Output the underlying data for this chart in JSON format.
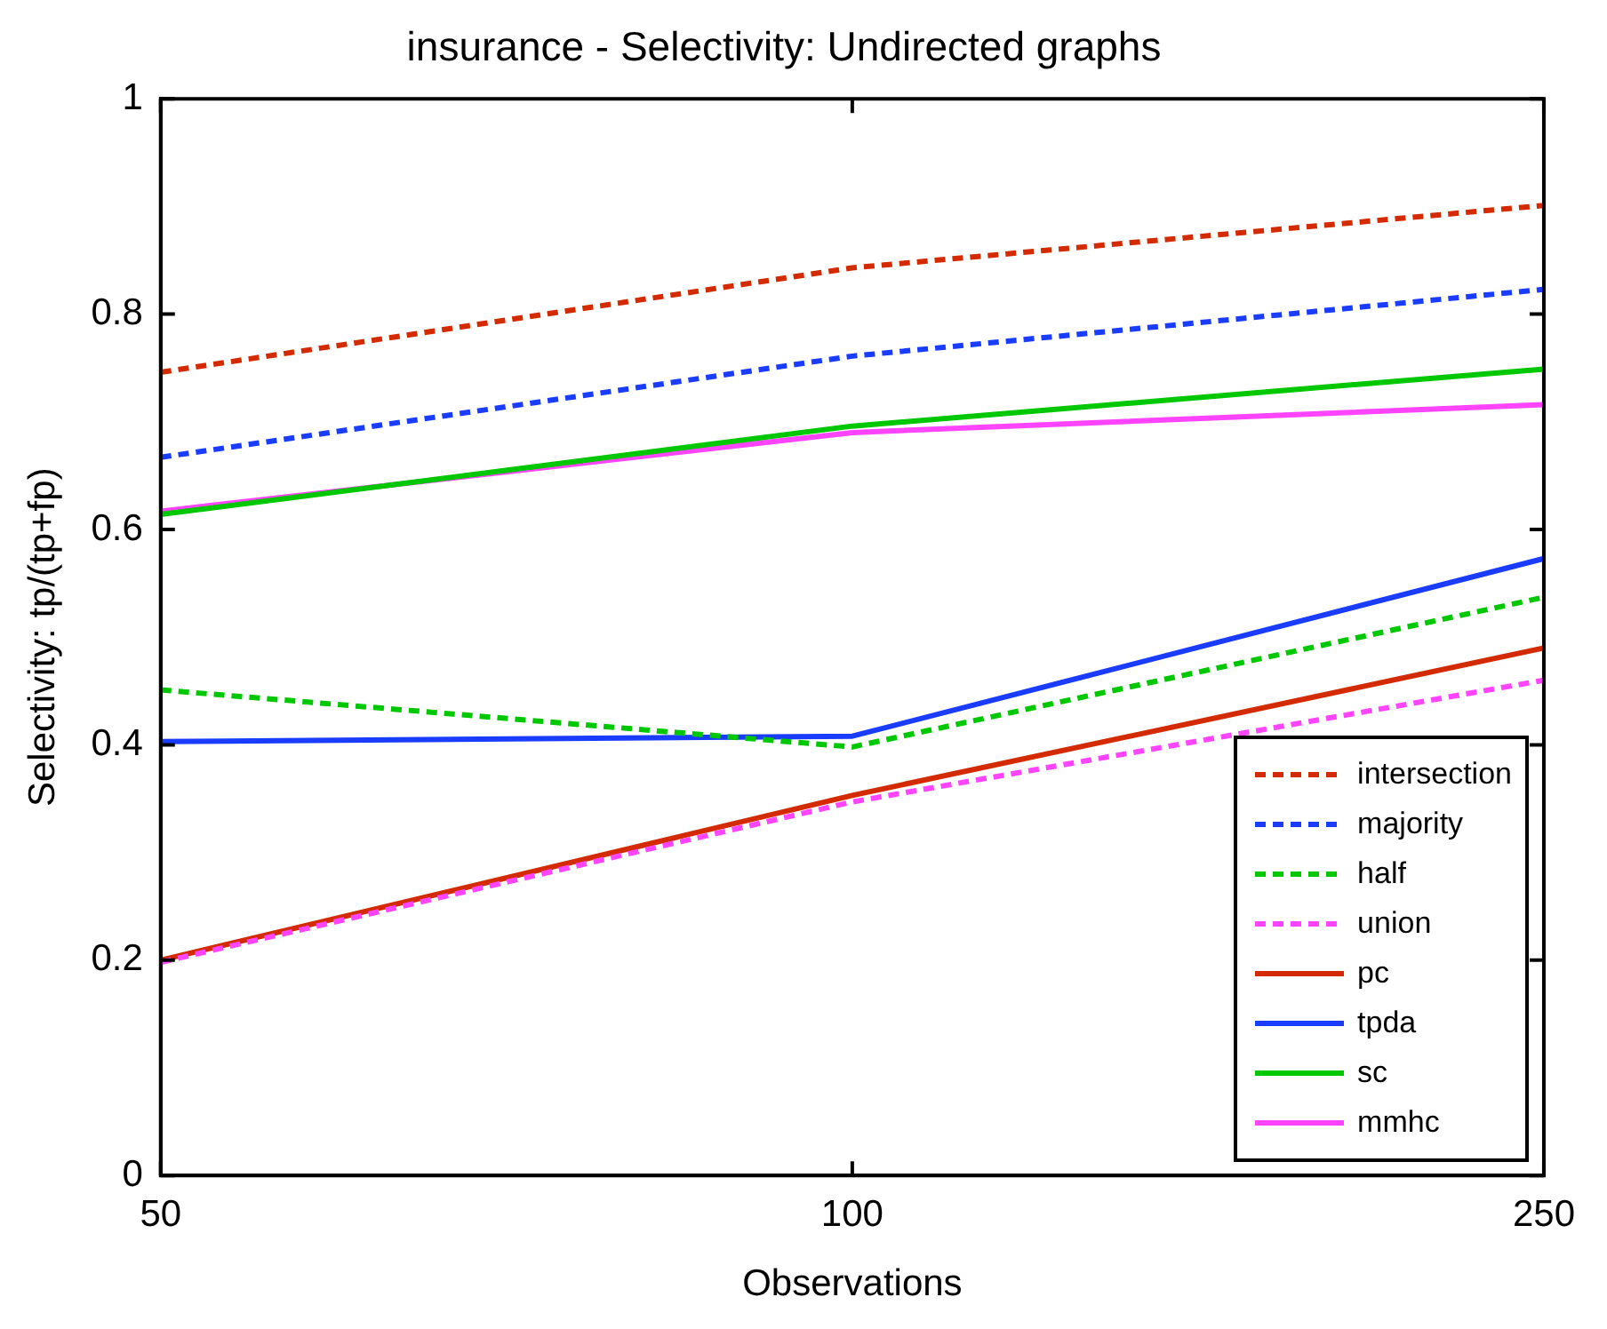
{
  "chart_data": {
    "type": "line",
    "title": "insurance - Selectivity: Undirected graphs",
    "xlabel": "Observations",
    "ylabel": "Selectivity: tp/(tp+fp)",
    "categories": [
      "50",
      "100",
      "250"
    ],
    "ylim": [
      0,
      1
    ],
    "yticks": [
      0,
      0.2,
      0.4,
      0.6,
      0.8,
      1
    ],
    "grid": false,
    "legend": "bottom right",
    "marker": "none",
    "series": [
      {
        "name": "intersection",
        "color": "#d42a00",
        "line_style": "dashed",
        "values": [
          0.746,
          0.843,
          0.901
        ]
      },
      {
        "name": "majority",
        "color": "#1a3cff",
        "line_style": "dashed",
        "values": [
          0.667,
          0.761,
          0.823
        ]
      },
      {
        "name": "half",
        "color": "#00c800",
        "line_style": "dashed",
        "values": [
          0.451,
          0.398,
          0.537
        ]
      },
      {
        "name": "union",
        "color": "#ff44ff",
        "line_style": "dashed",
        "values": [
          0.198,
          0.347,
          0.46
        ]
      },
      {
        "name": "pc",
        "color": "#d42a00",
        "line_style": "solid",
        "values": [
          0.2,
          0.353,
          0.49
        ]
      },
      {
        "name": "tpda",
        "color": "#1a3cff",
        "line_style": "solid",
        "values": [
          0.403,
          0.408,
          0.573
        ]
      },
      {
        "name": "sc",
        "color": "#00c800",
        "line_style": "solid",
        "values": [
          0.614,
          0.696,
          0.749
        ]
      },
      {
        "name": "mmhc",
        "color": "#ff44ff",
        "line_style": "solid",
        "values": [
          0.617,
          0.69,
          0.716
        ]
      }
    ]
  }
}
